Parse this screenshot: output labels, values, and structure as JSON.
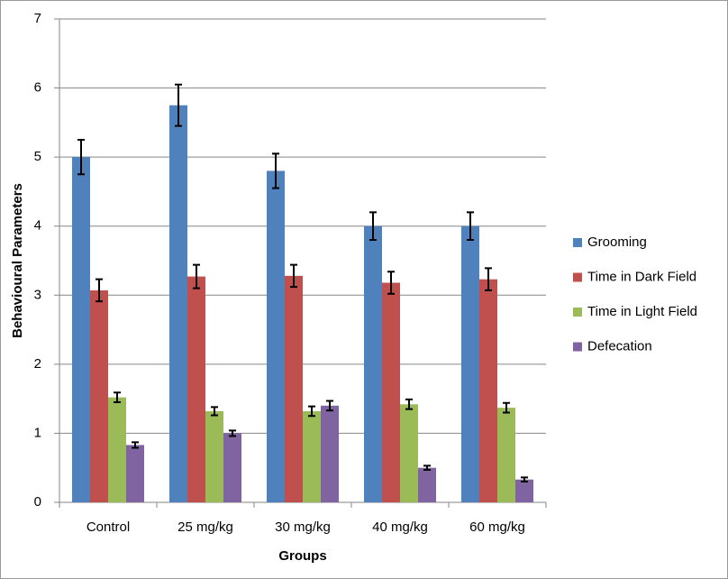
{
  "chart_data": {
    "type": "bar",
    "y_label": "Behavioural Parameters",
    "x_label": "Groups",
    "categories": [
      "Control",
      "25 mg/kg",
      "30 mg/kg",
      "40 mg/kg",
      "60 mg/kg"
    ],
    "series": [
      {
        "name": "Grooming",
        "color": "#4f81bd",
        "values": [
          5.0,
          5.75,
          4.8,
          4.0,
          4.0
        ],
        "errors": [
          0.25,
          0.3,
          0.25,
          0.2,
          0.2
        ]
      },
      {
        "name": "Time in Dark Field",
        "color": "#c0504d",
        "values": [
          3.07,
          3.27,
          3.28,
          3.18,
          3.23
        ],
        "errors": [
          0.16,
          0.17,
          0.16,
          0.16,
          0.16
        ]
      },
      {
        "name": "Time in Light Field",
        "color": "#9bbb59",
        "values": [
          1.52,
          1.32,
          1.32,
          1.42,
          1.37
        ],
        "errors": [
          0.07,
          0.06,
          0.07,
          0.07,
          0.07
        ]
      },
      {
        "name": "Defecation",
        "color": "#8064a2",
        "values": [
          0.83,
          1.0,
          1.4,
          0.5,
          0.33
        ],
        "errors": [
          0.04,
          0.04,
          0.07,
          0.03,
          0.03
        ]
      }
    ],
    "ylim": [
      0,
      7
    ],
    "yticks": [
      0,
      1,
      2,
      3,
      4,
      5,
      6,
      7
    ],
    "grid": true,
    "legend": "right"
  }
}
